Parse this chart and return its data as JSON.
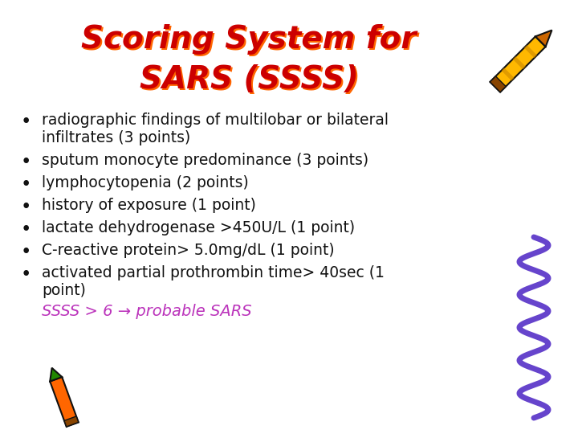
{
  "title_line1": "Scoring System for",
  "title_line2": "SARS (SSSS)",
  "title_color": "#CC0000",
  "title_shadow_color": "#FF6600",
  "bullet_points": [
    "radiographic findings of multilobar or bilateral\n   infiltrates (3 points)",
    "sputum monocyte predominance (3 points)",
    "lymphocytopenia (2 points)",
    "history of exposure (1 point)",
    "lactate dehydrogenase >450U/L (1 point)",
    "C-reactive protein> 5.0mg/dL (1 point)",
    "activated partial prothrombin time> 40sec (1\n   point)"
  ],
  "bullet_color": "#111111",
  "footer_text": "SSSS > 6 → probable SARS",
  "footer_color": "#BB33BB",
  "background_color": "#FFFFFF",
  "title_fontsize": 28,
  "bullet_fontsize": 13.5,
  "footer_fontsize": 14,
  "wave_color": "#6644CC",
  "wave_linewidth": 5
}
